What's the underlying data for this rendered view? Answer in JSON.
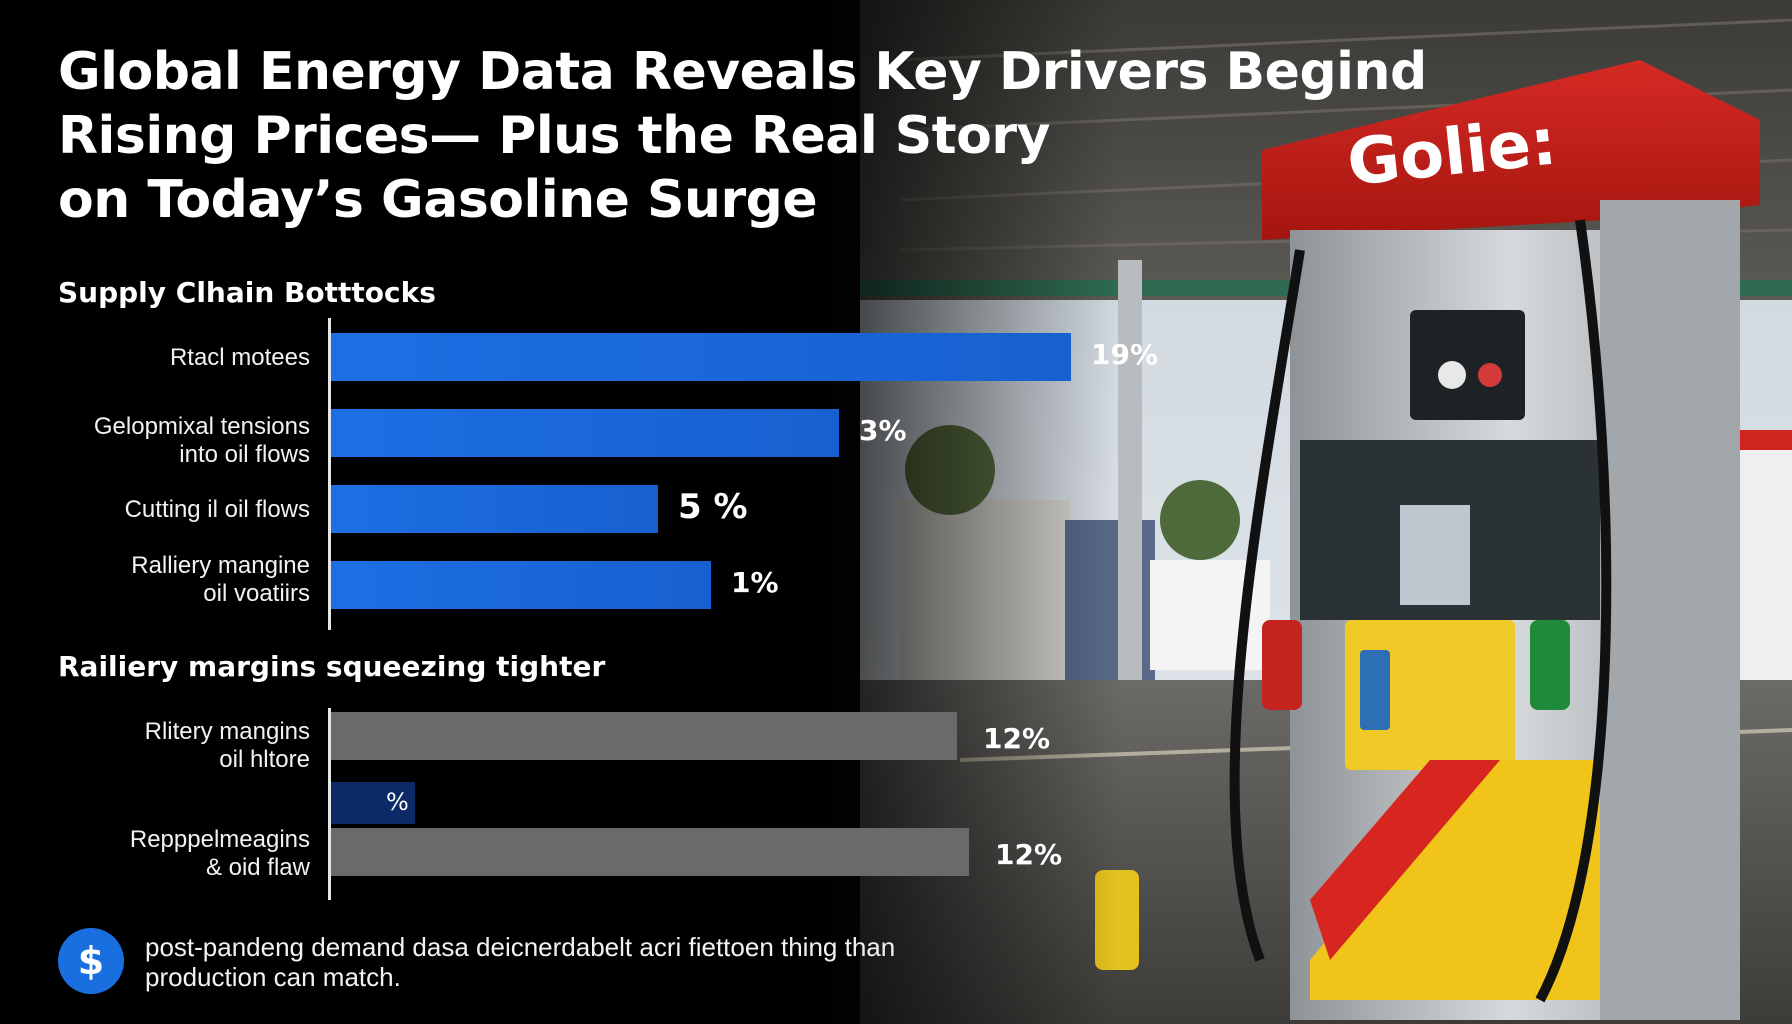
{
  "headline": {
    "line1": "Global Energy Data Reveals Key Drivers Begind",
    "line2": "Rising Prices— Plus the Real Story",
    "line3": "on Today’s Gasoline Surge"
  },
  "sections": {
    "supply_title": "Supply Clhain Botttocks",
    "refinery_title": "Railiery margins squeezing tighter"
  },
  "chart_data": [
    {
      "type": "bar",
      "orientation": "horizontal",
      "title": "Supply Clhain Botttocks",
      "categories": [
        {
          "line1": "Rtacl motees",
          "line2": ""
        },
        {
          "line1": "Gelopmixal tensions",
          "line2": "into oil flows"
        },
        {
          "line1": "Cutting il oil flows",
          "line2": ""
        },
        {
          "line1": "Ralliery mangine",
          "line2": "oil voatiirs"
        }
      ],
      "values": [
        19,
        3,
        5,
        1
      ],
      "value_labels": [
        "19%",
        "3%",
        "5 %",
        "1%"
      ],
      "xlim": [
        0,
        19
      ],
      "color": "#1c6fe3"
    },
    {
      "type": "bar",
      "orientation": "horizontal",
      "title": "Railiery margins squeezing tighter",
      "categories": [
        {
          "line1": "Rlitery mangins",
          "line2": "oil hltore"
        },
        {
          "line1": "",
          "line2": ""
        },
        {
          "line1": "Repppelmeagins",
          "line2": "& oid flaw"
        }
      ],
      "values": [
        12,
        null,
        12
      ],
      "value_labels": [
        "12%",
        "%",
        "12%"
      ],
      "colors": [
        "#6a6a6a",
        "#0c2a66",
        "#6a6a6a"
      ]
    }
  ],
  "footer": {
    "icon": "dollar-circle-icon",
    "icon_glyph": "$",
    "line1": "post-pandeng demand dasa deicnerdabelt acri fiettoen thing than",
    "line2": "production can match."
  },
  "pump": {
    "brand": "Golie:"
  }
}
